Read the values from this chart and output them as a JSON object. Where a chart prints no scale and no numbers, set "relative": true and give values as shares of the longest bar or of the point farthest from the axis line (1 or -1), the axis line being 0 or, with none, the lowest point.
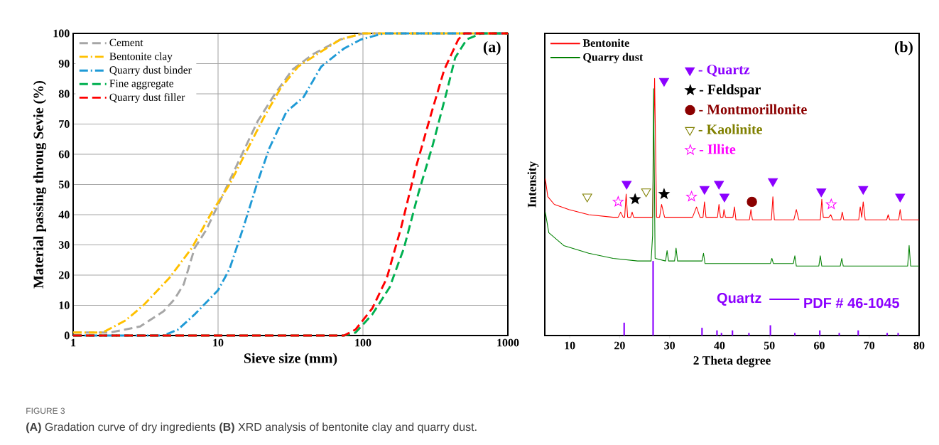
{
  "chart_data": [
    {
      "type": "line",
      "xlabel": "Sieve size (mm)",
      "ylabel": "Material passing throug Sevie (%)",
      "log": "x",
      "xlim": [
        1,
        1000
      ],
      "xticks": [
        1,
        10,
        100,
        1000
      ],
      "ylim": [
        0,
        100
      ],
      "yticks": [
        0,
        10,
        20,
        30,
        40,
        50,
        60,
        70,
        80,
        90,
        100
      ],
      "grid": true,
      "legend": "top left",
      "annotations": [
        "(a)",
        "FIGURE 3",
        "**(A)** Gradation curve of dry ingredients **(B)** XRD analysis of bentonite clay and quarry dust."
      ],
      "series": [
        {
          "name": "Cement",
          "color": "#a6a6a6",
          "line_style": "dashed",
          "x": [
            1,
            1.8,
            2.9,
            4.2,
            5,
            5.8,
            6.9,
            8.3,
            10.9,
            14.3,
            18.8,
            24.7,
            32.6,
            44.8,
            70,
            100,
            1000
          ],
          "values": [
            1,
            1,
            3,
            8,
            12,
            17,
            29,
            35,
            47,
            59,
            71,
            80,
            88,
            93,
            98,
            100,
            100
          ]
        },
        {
          "name": "Bentonite clay",
          "color": "#ffc000",
          "line_style": "dashdot",
          "x": [
            1,
            1.6,
            2.3,
            3.05,
            4.6,
            6.6,
            9.1,
            12,
            15.7,
            20.6,
            27.1,
            35.7,
            51.5,
            70,
            100,
            1000
          ],
          "values": [
            1,
            1,
            5,
            10,
            19,
            29,
            41,
            50,
            61,
            72,
            82,
            89,
            94,
            98,
            100,
            100
          ]
        },
        {
          "name": "Quarry dust binder",
          "color": "#1f9ad6",
          "line_style": "dashdot",
          "x": [
            1,
            4.2,
            5.3,
            6.9,
            10,
            12,
            15,
            18.8,
            22.6,
            29.6,
            39,
            51.5,
            74,
            97,
            139,
            1000
          ],
          "values": [
            0,
            0,
            2,
            7,
            15,
            22,
            36,
            51,
            62,
            74,
            79,
            89,
            95,
            98,
            100,
            100
          ]
        },
        {
          "name": "Fine aggregate",
          "color": "#00b050",
          "line_style": "dashed",
          "x": [
            1,
            74,
            89,
            116,
            153,
            192,
            241,
            303,
            380,
            433,
            520,
            655,
            1000
          ],
          "values": [
            0,
            0,
            1,
            7,
            16,
            29,
            47,
            63,
            81,
            92,
            98,
            100,
            100
          ]
        },
        {
          "name": "Quarry dust filler",
          "color": "#ff0000",
          "line_style": "dashed",
          "x": [
            1,
            74,
            89,
            116,
            146,
            184,
            230,
            290,
            364,
            455,
            500,
            1000
          ],
          "values": [
            0,
            0,
            2,
            9,
            19,
            36,
            55,
            72,
            88,
            98,
            100,
            100
          ]
        }
      ]
    },
    {
      "type": "line",
      "xlabel": "2 Theta degree",
      "ylabel": "Intensity",
      "relative": true,
      "xlim": [
        5,
        80
      ],
      "xticks": [
        10,
        20,
        30,
        40,
        50,
        60,
        70,
        80
      ],
      "legend": "top left",
      "annotations": [
        "(b)",
        "Quartz"
      ],
      "series": [
        {
          "name": "Bentonite",
          "color": "#ff0000",
          "x": [
            5.1,
            5.6,
            6.9,
            9.8,
            13.8,
            18.7,
            19.7,
            20.2,
            20.7,
            21.0,
            21.3,
            21.6,
            22.2,
            22.5,
            22.8,
            26.6,
            27.0,
            27.4,
            28.0,
            28.4,
            29.0,
            34.6,
            35.4,
            36.1,
            36.7,
            37.0,
            37.3,
            39.6,
            39.9,
            40.2,
            40.7,
            40.9,
            41.2,
            42.7,
            43.0,
            43.3,
            46.0,
            46.3,
            46.6,
            50.4,
            50.7,
            51.0,
            54.9,
            55.4,
            55.9,
            60.2,
            60.5,
            60.8,
            61.9,
            62.3,
            62.7,
            64.3,
            64.6,
            64.9,
            67.9,
            68.2,
            68.5,
            68.8,
            69.2,
            73.5,
            73.8,
            74.1,
            75.9,
            76.2,
            76.5,
            80
          ],
          "values": [
            0.61,
            0.54,
            0.51,
            0.49,
            0.47,
            0.46,
            0.46,
            0.48,
            0.46,
            0.46,
            0.55,
            0.46,
            0.46,
            0.48,
            0.46,
            0.46,
            1.0,
            0.46,
            0.46,
            0.51,
            0.46,
            0.46,
            0.5,
            0.46,
            0.46,
            0.52,
            0.46,
            0.46,
            0.51,
            0.46,
            0.46,
            0.49,
            0.46,
            0.46,
            0.5,
            0.45,
            0.45,
            0.49,
            0.45,
            0.45,
            0.54,
            0.45,
            0.45,
            0.49,
            0.45,
            0.45,
            0.53,
            0.46,
            0.46,
            0.47,
            0.45,
            0.45,
            0.48,
            0.45,
            0.45,
            0.5,
            0.46,
            0.52,
            0.45,
            0.45,
            0.47,
            0.45,
            0.45,
            0.49,
            0.45,
            0.45
          ]
        },
        {
          "name": "Quarry dust",
          "color": "#008000",
          "x": [
            5.1,
            5.8,
            8.8,
            13.8,
            18.7,
            23.6,
            26.3,
            26.6,
            26.8,
            27.1,
            29.2,
            29.5,
            29.8,
            31.0,
            31.3,
            31.6,
            36.5,
            36.8,
            37.1,
            50.2,
            50.5,
            50.8,
            54.8,
            55.1,
            55.4,
            59.9,
            60.2,
            60.5,
            64.2,
            64.5,
            64.8,
            77.7,
            78.0,
            78.3,
            80
          ],
          "values": [
            0.48,
            0.4,
            0.35,
            0.32,
            0.3,
            0.29,
            0.29,
            0.39,
            0.96,
            0.3,
            0.29,
            0.33,
            0.29,
            0.29,
            0.34,
            0.29,
            0.29,
            0.32,
            0.28,
            0.28,
            0.3,
            0.28,
            0.28,
            0.31,
            0.27,
            0.27,
            0.31,
            0.27,
            0.27,
            0.3,
            0.27,
            0.27,
            0.35,
            0.27,
            0.27
          ]
        },
        {
          "name": "PDF # 46-1045",
          "type": "bar",
          "color": "#8b00ff",
          "x": [
            20.9,
            26.7,
            36.5,
            39.5,
            40.4,
            42.6,
            45.9,
            50.2,
            55.1,
            60.1,
            64.0,
            67.8,
            73.6,
            75.8
          ],
          "values": [
            0.05,
            0.29,
            0.03,
            0.02,
            0.01,
            0.02,
            0.01,
            0.04,
            0.01,
            0.02,
            0.01,
            0.02,
            0.01,
            0.01
          ]
        },
        {
          "name": "- Quartz",
          "type": "scatter",
          "marker": "triangle-down",
          "color": "#8b00ff",
          "x": [
            21.4,
            28.9,
            37.0,
            39.9,
            41.0,
            50.7,
            60.4,
            68.8,
            76.2
          ],
          "values": [
            0.59,
            0.99,
            0.57,
            0.59,
            0.54,
            0.6,
            0.56,
            0.57,
            0.54
          ]
        },
        {
          "name": "- Feldspar",
          "type": "scatter",
          "marker": "star",
          "color": "#000000",
          "x": [
            23.1,
            28.9
          ],
          "values": [
            0.53,
            0.55
          ]
        },
        {
          "name": "- Montmorillonite",
          "type": "scatter",
          "marker": "circle",
          "color": "#8b0000",
          "x": [
            46.5
          ],
          "values": [
            0.52
          ]
        },
        {
          "name": "- Kaolinite",
          "type": "scatter",
          "marker": "triangle-down-open",
          "color": "#808000",
          "x": [
            13.5,
            25.3
          ],
          "values": [
            0.54,
            0.56
          ]
        },
        {
          "name": "- Illite",
          "type": "scatter",
          "marker": "star-open",
          "color": "#ff00ff",
          "x": [
            19.7,
            34.4,
            62.4
          ],
          "values": [
            0.52,
            0.54,
            0.51
          ]
        }
      ]
    }
  ]
}
